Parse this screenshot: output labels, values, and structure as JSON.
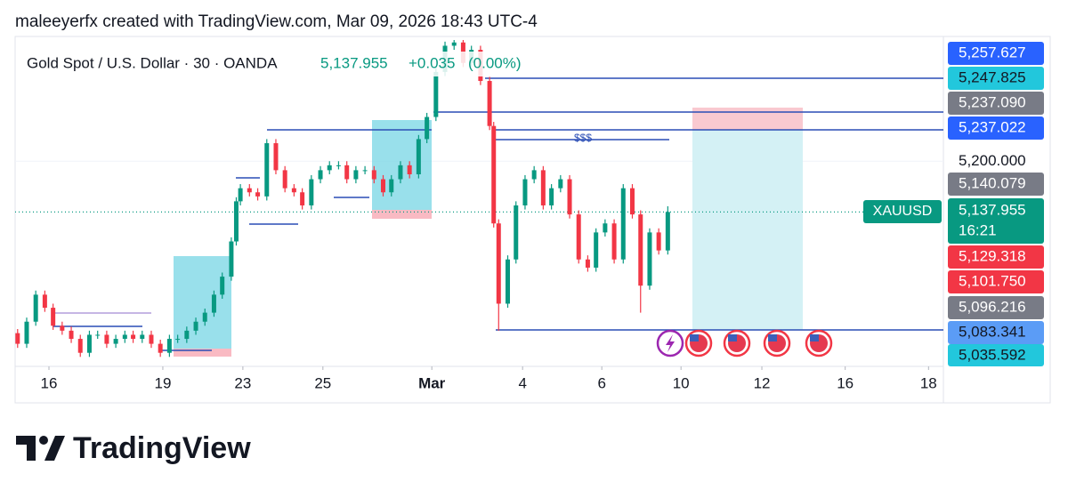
{
  "header": {
    "attribution": "maleeyerfx created with TradingView.com, Mar 09, 2026 18:43 UTC-4"
  },
  "chart_data": {
    "type": "candlestick",
    "title": "Gold Spot / U.S. Dollar · 30 · OANDA",
    "last_price_label": "5,137.955",
    "change": "+0.035",
    "change_percent": "(0.00%)",
    "x": [
      3,
      14,
      25,
      36,
      46,
      57,
      68,
      79,
      90,
      100,
      111,
      122,
      133,
      143,
      154,
      165,
      176,
      187,
      197,
      208,
      219,
      230,
      241,
      251,
      262,
      268,
      273,
      284,
      294,
      305,
      316,
      327,
      338,
      348,
      359,
      370,
      381,
      392,
      402,
      413,
      424,
      435,
      446,
      456,
      467,
      478,
      489,
      499,
      510,
      521,
      532,
      543,
      553,
      564,
      575,
      580,
      586,
      597,
      607,
      618,
      629,
      640,
      650,
      661,
      672,
      683,
      694,
      704,
      715,
      726,
      737,
      748,
      758,
      769,
      780,
      791
    ],
    "open": [
      4990,
      4977,
      5004,
      5037,
      5021,
      4999,
      4993,
      4983,
      4966,
      4988,
      4988,
      4977,
      4983,
      4988,
      4983,
      4988,
      4977,
      4966,
      4983,
      4983,
      4993,
      5004,
      5015,
      5037,
      5059,
      5102,
      5151,
      5167,
      5162,
      5157,
      5222,
      5189,
      5167,
      5162,
      5146,
      5178,
      5189,
      5195,
      5195,
      5178,
      5189,
      5189,
      5178,
      5162,
      5178,
      5195,
      5184,
      5227,
      5254,
      5309,
      5341,
      5345,
      5320,
      5336,
      5298,
      5243,
      5124,
      5026,
      5080,
      5146,
      5178,
      5189,
      5146,
      5167,
      5178,
      5135,
      5080,
      5070,
      5113,
      5124,
      5080,
      5167,
      5135,
      5048,
      5113,
      5091
    ],
    "high": [
      4995,
      5009,
      5042,
      5042,
      5026,
      5004,
      4998,
      4988,
      4993,
      4993,
      4993,
      4988,
      4993,
      4993,
      4993,
      4993,
      4982,
      4988,
      4988,
      4998,
      5009,
      5020,
      5042,
      5064,
      5107,
      5156,
      5172,
      5172,
      5167,
      5227,
      5227,
      5194,
      5172,
      5167,
      5183,
      5194,
      5200,
      5200,
      5200,
      5194,
      5194,
      5194,
      5183,
      5183,
      5200,
      5200,
      5232,
      5259,
      5314,
      5346,
      5348,
      5348,
      5341,
      5341,
      5303,
      5248,
      5129,
      5085,
      5151,
      5183,
      5194,
      5194,
      5172,
      5183,
      5183,
      5140,
      5085,
      5118,
      5129,
      5129,
      5172,
      5172,
      5140,
      5118,
      5118,
      5145
    ],
    "low": [
      4972,
      4972,
      4999,
      5016,
      4994,
      4988,
      4978,
      4961,
      4961,
      4983,
      4972,
      4972,
      4978,
      4978,
      4978,
      4972,
      4961,
      4961,
      4978,
      4978,
      4988,
      4999,
      5010,
      5032,
      5054,
      5097,
      5146,
      5157,
      5152,
      5152,
      5184,
      5162,
      5157,
      5141,
      5141,
      5173,
      5184,
      5190,
      5173,
      5173,
      5184,
      5173,
      5157,
      5157,
      5173,
      5179,
      5179,
      5222,
      5249,
      5304,
      5336,
      5315,
      5315,
      5293,
      5238,
      5119,
      4993,
      5021,
      5075,
      5141,
      5173,
      5141,
      5141,
      5162,
      5130,
      5075,
      5065,
      5065,
      5108,
      5075,
      5075,
      5130,
      5015,
      5043,
      5086,
      5086
    ],
    "close": [
      4977,
      5004,
      5037,
      5021,
      4999,
      4993,
      4983,
      4966,
      4988,
      4988,
      4977,
      4983,
      4988,
      4983,
      4988,
      4977,
      4966,
      4983,
      4983,
      4993,
      5004,
      5015,
      5037,
      5059,
      5102,
      5151,
      5167,
      5162,
      5157,
      5222,
      5189,
      5167,
      5162,
      5146,
      5178,
      5189,
      5195,
      5195,
      5178,
      5189,
      5189,
      5178,
      5162,
      5178,
      5195,
      5184,
      5227,
      5254,
      5309,
      5341,
      5345,
      5320,
      5336,
      5298,
      5243,
      5124,
      5026,
      5080,
      5146,
      5178,
      5189,
      5146,
      5167,
      5178,
      5135,
      5080,
      5070,
      5113,
      5124,
      5080,
      5167,
      5135,
      5048,
      5113,
      5091,
      5138
    ],
    "up_color": "#089981",
    "down_color": "#f23645",
    "xlim": [
      0,
      1125
    ],
    "xticks": [
      {
        "value": 41,
        "label": "16"
      },
      {
        "value": 179,
        "label": "19"
      },
      {
        "value": 276,
        "label": "23"
      },
      {
        "value": 373,
        "label": "25"
      },
      {
        "value": 505,
        "label": "Mar"
      },
      {
        "value": 615,
        "label": "4"
      },
      {
        "value": 711,
        "label": "6"
      },
      {
        "value": 807,
        "label": "10"
      },
      {
        "value": 905,
        "label": "12"
      },
      {
        "value": 1006,
        "label": "16"
      },
      {
        "value": 1107,
        "label": "18"
      }
    ],
    "ylim": [
      4957,
      5348
    ],
    "yticks": [
      {
        "value": 5200,
        "label": "5,200.000"
      }
    ],
    "last_price": 5137.955,
    "symbol": "XAUUSD",
    "countdown": "16:21",
    "price_tags": [
      {
        "label": "5,257.627",
        "color": "#2962ff",
        "text_color": "#ffffff"
      },
      {
        "label": "5,247.825",
        "color": "#22c7dc",
        "text_color": "#131722"
      },
      {
        "label": "5,237.090",
        "color": "#787b86",
        "text_color": "#ffffff"
      },
      {
        "label": "5,237.022",
        "color": "#2962ff",
        "text_color": "#ffffff"
      },
      {
        "label": "5,140.079",
        "color": "#787b86",
        "text_color": "#ffffff"
      },
      {
        "label": "5,129.318",
        "color": "#f23645",
        "text_color": "#ffffff"
      },
      {
        "label": "5,101.750",
        "color": "#f23645",
        "text_color": "#ffffff"
      },
      {
        "label": "5,096.216",
        "color": "#787b86",
        "text_color": "#ffffff"
      },
      {
        "label": "5,083.341",
        "color": "#5b9cf6",
        "text_color": "#131722"
      },
      {
        "label": "5,035.592",
        "color": "#22c7dc",
        "text_color": "#131722"
      }
    ],
    "annotation": "$$$"
  },
  "footer": {
    "brand": "TradingView"
  }
}
